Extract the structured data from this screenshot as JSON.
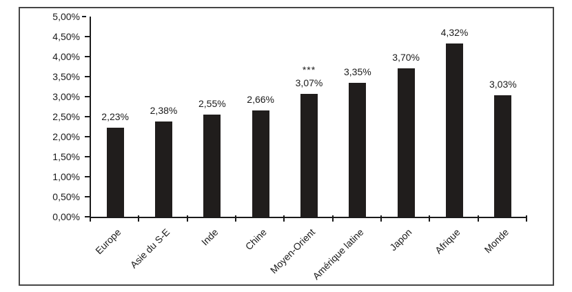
{
  "chart_data": {
    "type": "bar",
    "categories": [
      "Europe",
      "Asie du S-E",
      "Inde",
      "Chine",
      "Moyen-Orient",
      "Amérique latine",
      "Japon",
      "Afrique",
      "Monde"
    ],
    "values": [
      2.23,
      2.38,
      2.55,
      2.66,
      3.07,
      3.35,
      3.7,
      4.32,
      3.03
    ],
    "bar_labels": [
      "2,23%",
      "2,38%",
      "2,55%",
      "2,66%",
      "3,07%",
      "3,35%",
      "3,70%",
      "4,32%",
      "3,03%"
    ],
    "annotations": [
      {
        "category_index": 4,
        "text": "***",
        "position": "above-bar-label"
      }
    ],
    "y_axis": {
      "min": 0,
      "max": 5,
      "step": 0.5,
      "tick_labels": [
        "0,00%",
        "0,50%",
        "1,00%",
        "1,50%",
        "2,00%",
        "2,50%",
        "3,00%",
        "3,50%",
        "4,00%",
        "4,50%",
        "5,00%"
      ],
      "format": "percent-french-decimal-comma"
    },
    "title": "",
    "xlabel": "",
    "ylabel": "",
    "grid": false,
    "legend": false,
    "x_label_rotation_deg": -45,
    "colors": {
      "bar": "#201d1c",
      "axis": "#1a1a1a",
      "text": "#1a1a1a",
      "frame_border": "#454545",
      "background": "#ffffff"
    }
  }
}
